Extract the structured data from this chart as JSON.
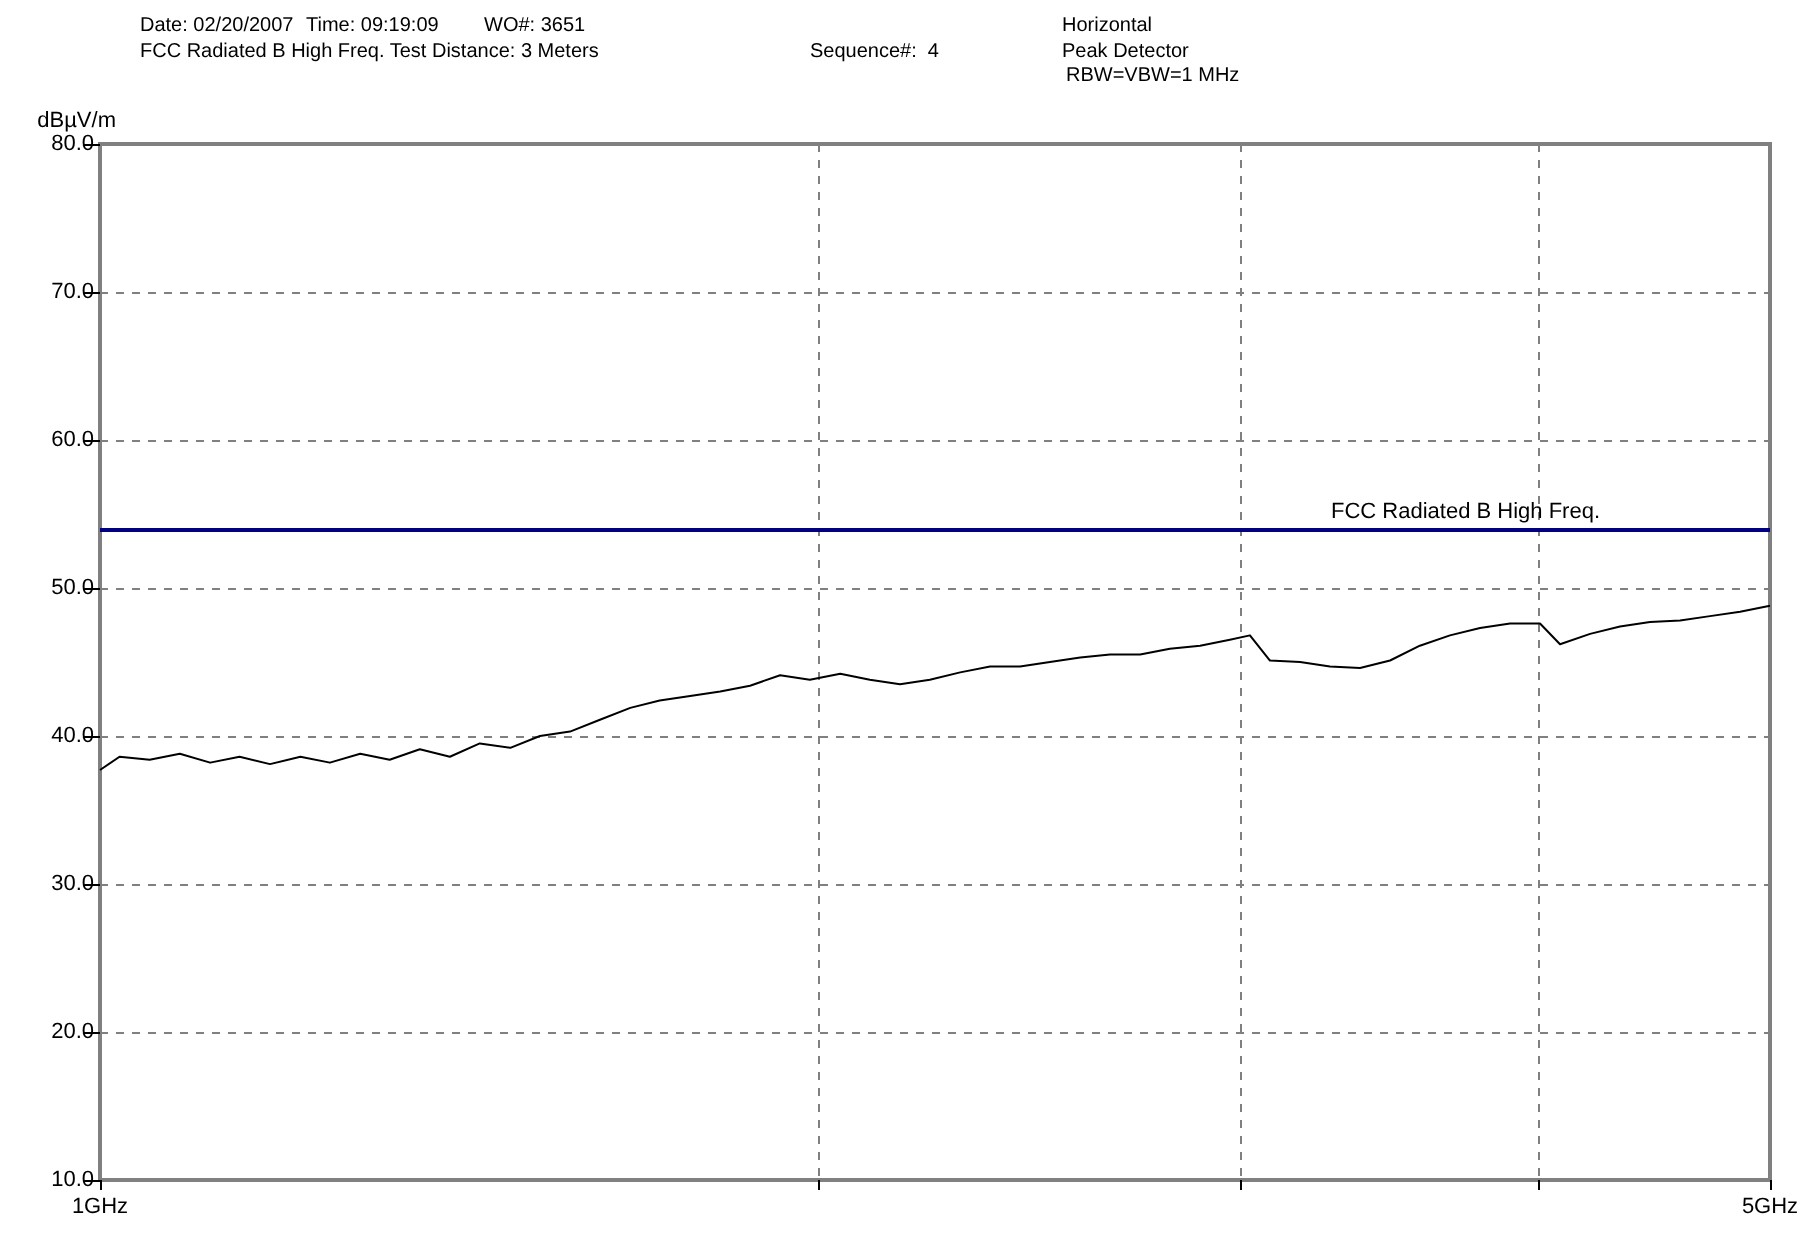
{
  "chart_data": {
    "type": "line",
    "annotations": [
      "Date: 02/20/2007",
      "Time: 09:19:09",
      "WO#: 3651",
      "FCC Radiated B High Freq. Test Distance: 3 Meters",
      "Sequence#:  4",
      "Horizontal",
      "Peak Detector",
      "RBW=VBW=1 MHz"
    ],
    "ylabel": "dBµV/m",
    "x": [
      1.0,
      1.019,
      1.049,
      1.08,
      1.112,
      1.144,
      1.178,
      1.213,
      1.248,
      1.285,
      1.322,
      1.361,
      1.401,
      1.442,
      1.485,
      1.528,
      1.573,
      1.619,
      1.667,
      1.715,
      1.766,
      1.818,
      1.871,
      1.926,
      1.982,
      2.041,
      2.1,
      2.162,
      2.225,
      2.291,
      2.358,
      2.427,
      2.498,
      2.572,
      2.647,
      2.725,
      2.804,
      2.887,
      2.971,
      3.029,
      3.088,
      3.179,
      3.272,
      3.368,
      3.467,
      3.568,
      3.673,
      3.781,
      3.892,
      4.006,
      4.084,
      4.204,
      4.327,
      4.454,
      4.585,
      4.719,
      4.858,
      5.0
    ],
    "series": [
      {
        "color": "#000000",
        "values": [
          37.7,
          38.6,
          38.4,
          38.8,
          38.2,
          38.6,
          38.1,
          38.6,
          38.2,
          38.8,
          38.4,
          39.1,
          38.6,
          39.5,
          39.2,
          40.0,
          40.3,
          41.1,
          41.9,
          42.4,
          42.7,
          43.0,
          43.4,
          44.1,
          43.8,
          44.2,
          43.8,
          43.5,
          43.8,
          44.3,
          44.7,
          44.7,
          45.0,
          45.3,
          45.5,
          45.5,
          45.9,
          46.1,
          46.5,
          46.8,
          45.1,
          45.0,
          44.7,
          44.6,
          45.1,
          46.1,
          46.8,
          47.3,
          47.6,
          47.6,
          46.2,
          46.9,
          47.4,
          47.7,
          47.8,
          48.1,
          48.4,
          48.8
        ]
      }
    ],
    "xlim": [
      1,
      5
    ],
    "log": "x",
    "xticks": [
      {
        "value": 1,
        "label": "1GHz"
      },
      {
        "value": 2,
        "label": null
      },
      {
        "value": 3,
        "label": null
      },
      {
        "value": 4,
        "label": null
      },
      {
        "value": 5,
        "label": "5GHz"
      }
    ],
    "ylim": [
      10,
      80
    ],
    "yticks": [
      {
        "value": 10,
        "label": "10.0"
      },
      {
        "value": 20,
        "label": "20.0"
      },
      {
        "value": 30,
        "label": "30.0"
      },
      {
        "value": 40,
        "label": "40.0"
      },
      {
        "value": 50,
        "label": "50.0"
      },
      {
        "value": 60,
        "label": "60.0"
      },
      {
        "value": 70,
        "label": "70.0"
      },
      {
        "value": 80,
        "label": "80.0"
      }
    ],
    "ref_lines": [
      {
        "axis": "y",
        "value": 54,
        "label": "FCC Radiated B High Freq.",
        "color": "#000080"
      }
    ],
    "grid": true,
    "marker": "none",
    "line_style": "solid"
  }
}
